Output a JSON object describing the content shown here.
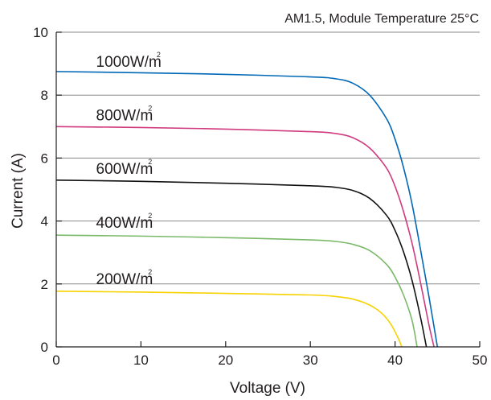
{
  "chart_data": {
    "type": "line",
    "title": "",
    "note": "AM1.5, Module Temperature 25°C",
    "xlabel": "Voltage (V)",
    "ylabel": "Current (A)",
    "xlim": [
      0,
      50
    ],
    "ylim": [
      0,
      10
    ],
    "xticks": [
      0,
      10,
      20,
      30,
      40,
      50
    ],
    "yticks": [
      0,
      2,
      4,
      6,
      8,
      10
    ],
    "grid": "horizontal",
    "series": [
      {
        "name": "1000W/m²",
        "color": "#0068b7",
        "x": [
          0,
          10,
          20,
          30,
          33,
          35,
          37,
          39,
          40,
          41,
          42,
          43,
          44,
          45
        ],
        "y": [
          8.75,
          8.71,
          8.66,
          8.58,
          8.52,
          8.38,
          8.0,
          7.25,
          6.6,
          5.7,
          4.55,
          3.1,
          1.6,
          0
        ]
      },
      {
        "name": "800W/m²",
        "color": "#d03a7f",
        "x": [
          0,
          10,
          20,
          30,
          33,
          35,
          37,
          39,
          40,
          41,
          42,
          43,
          44,
          44.6
        ],
        "y": [
          7.0,
          6.97,
          6.92,
          6.84,
          6.78,
          6.65,
          6.32,
          5.68,
          5.1,
          4.3,
          3.3,
          2.05,
          0.7,
          0
        ]
      },
      {
        "name": "600W/m²",
        "color": "#111111",
        "x": [
          0,
          10,
          20,
          30,
          33,
          35,
          37,
          39,
          40,
          41,
          42,
          43,
          43.7
        ],
        "y": [
          5.3,
          5.26,
          5.2,
          5.12,
          5.07,
          4.97,
          4.72,
          4.18,
          3.7,
          3.02,
          2.12,
          0.95,
          0
        ]
      },
      {
        "name": "400W/m²",
        "color": "#7bb96a",
        "x": [
          0,
          10,
          20,
          30,
          33,
          35,
          37,
          39,
          40,
          41,
          42,
          42.6
        ],
        "y": [
          3.55,
          3.52,
          3.47,
          3.4,
          3.35,
          3.26,
          3.06,
          2.62,
          2.22,
          1.65,
          0.85,
          0
        ]
      },
      {
        "name": "200W/m²",
        "color": "#f6d200",
        "x": [
          0,
          10,
          20,
          30,
          33,
          35,
          37,
          38.5,
          39.5,
          40.3,
          40.8
        ],
        "y": [
          1.77,
          1.74,
          1.7,
          1.65,
          1.6,
          1.52,
          1.33,
          1.05,
          0.72,
          0.32,
          0
        ]
      }
    ],
    "labels": [
      {
        "series": 0,
        "text": "1000W/m",
        "sup": "2",
        "x": 4.7,
        "y": 8.9
      },
      {
        "series": 1,
        "text": "800W/m",
        "sup": "2",
        "x": 4.7,
        "y": 7.2
      },
      {
        "series": 2,
        "text": "600W/m",
        "sup": "2",
        "x": 4.7,
        "y": 5.5
      },
      {
        "series": 3,
        "text": "400W/m",
        "sup": "2",
        "x": 4.7,
        "y": 3.78
      },
      {
        "series": 4,
        "text": "200W/m",
        "sup": "2",
        "x": 4.7,
        "y": 2.0
      }
    ]
  }
}
